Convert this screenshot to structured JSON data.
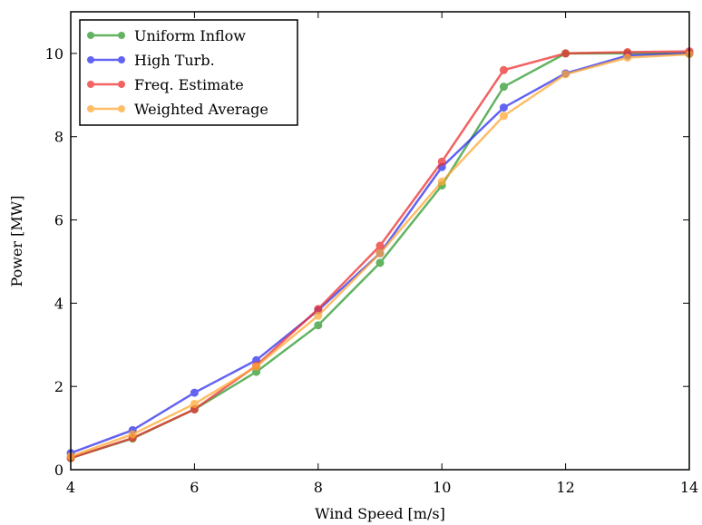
{
  "chart_data": {
    "type": "line",
    "xlabel": "Wind Speed [m/s]",
    "ylabel": "Power [MW]",
    "x": [
      4,
      5,
      6,
      7,
      8,
      9,
      10,
      11,
      12,
      13,
      14
    ],
    "xlim": [
      4,
      14
    ],
    "xticks": [
      4,
      6,
      8,
      10,
      12,
      14
    ],
    "ylim": [
      0,
      11
    ],
    "yticks": [
      0,
      2,
      4,
      6,
      8,
      10
    ],
    "legend": "upper left",
    "series": [
      {
        "name": "Uniform Inflow",
        "color": "#2f9a2f",
        "values": [
          0.28,
          0.75,
          1.45,
          2.35,
          3.47,
          4.97,
          6.83,
          9.2,
          10.0,
          10.0,
          10.0
        ]
      },
      {
        "name": "High Turb.",
        "color": "#2f2fee",
        "values": [
          0.4,
          0.95,
          1.85,
          2.63,
          3.83,
          5.2,
          7.27,
          8.7,
          9.52,
          9.95,
          10.0
        ]
      },
      {
        "name": "Freq. Estimate",
        "color": "#ee2f2f",
        "values": [
          0.28,
          0.76,
          1.45,
          2.5,
          3.86,
          5.38,
          7.4,
          9.6,
          10.0,
          10.03,
          10.05
        ]
      },
      {
        "name": "Weighted Average",
        "color": "#ffa733",
        "values": [
          0.32,
          0.85,
          1.58,
          2.48,
          3.7,
          5.2,
          6.92,
          8.5,
          9.5,
          9.9,
          9.98
        ]
      }
    ]
  }
}
